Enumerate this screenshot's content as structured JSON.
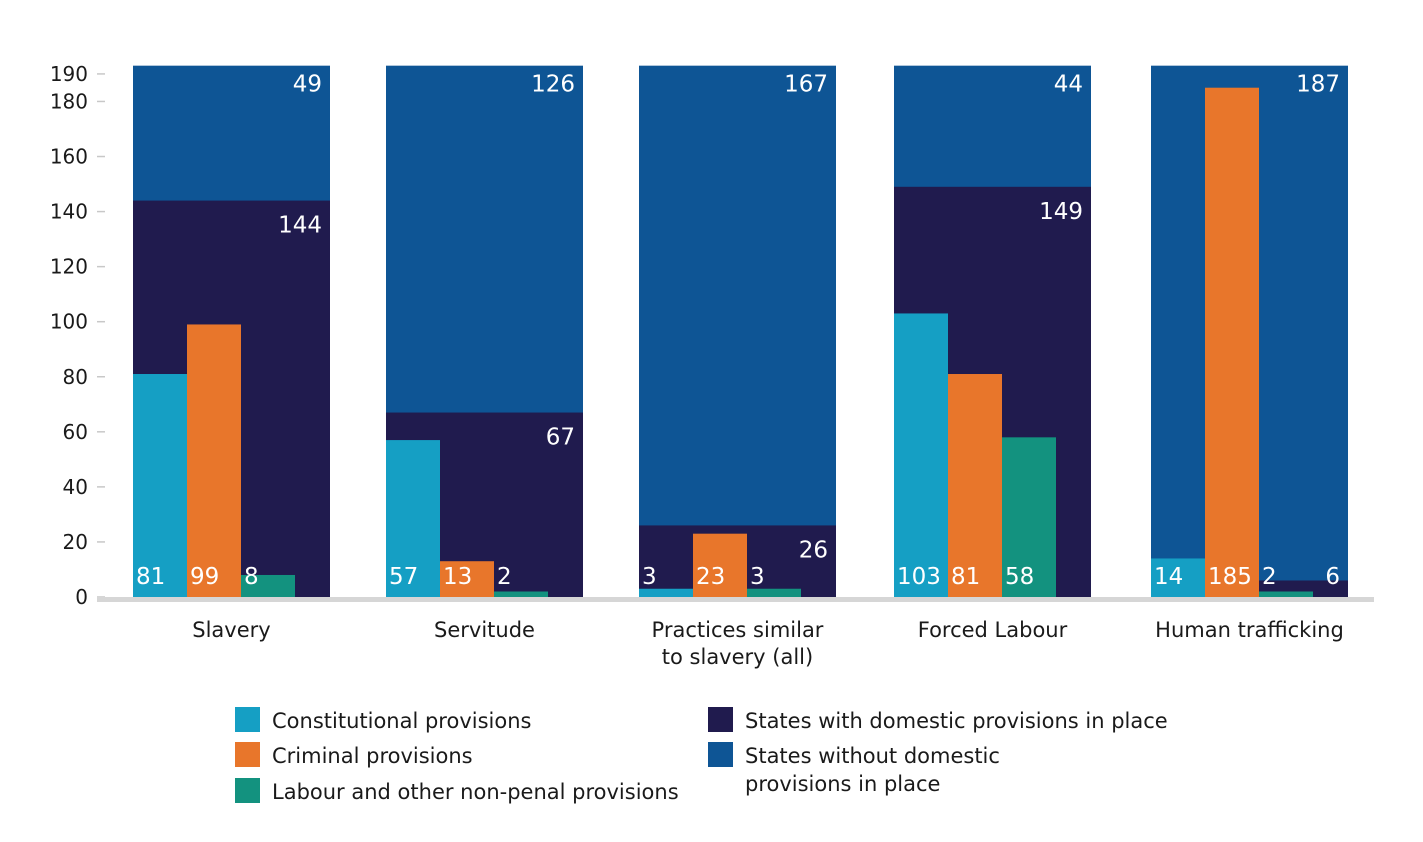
{
  "chart_data": {
    "type": "bar",
    "title": "",
    "xlabel": "",
    "ylabel": "",
    "ylim": [
      0,
      204
    ],
    "yticks": [
      0,
      20,
      40,
      60,
      80,
      100,
      120,
      140,
      160,
      180,
      190
    ],
    "colors": {
      "without": "#0e5595",
      "with": "#201b4e",
      "constitutional": "#159fc4",
      "criminal": "#e8762b",
      "labour": "#13927f",
      "axis": "#d6d6d6"
    },
    "groups": [
      {
        "category": "Slavery",
        "with": 144,
        "without": 49,
        "provisions": [
          81,
          99,
          8
        ],
        "labels": [
          "81",
          "99",
          "8"
        ],
        "with_label": "144",
        "without_label": "49"
      },
      {
        "category": "Servitude",
        "with": 67,
        "without": 126,
        "provisions": [
          57,
          13,
          2
        ],
        "labels": [
          "57",
          "13",
          "2"
        ],
        "with_label": "67",
        "without_label": "126"
      },
      {
        "category": "Practices similar to slavery (all)",
        "with": 26,
        "without": 167,
        "provisions": [
          3,
          23,
          3
        ],
        "labels": [
          "3",
          "23",
          "3"
        ],
        "with_label": "26",
        "without_label": "167"
      },
      {
        "category": "Forced Labour",
        "with": 149,
        "without": 44,
        "provisions": [
          103,
          81,
          58
        ],
        "labels": [
          "103",
          "81",
          "58"
        ],
        "with_label": "149",
        "without_label": "44"
      },
      {
        "category": "Human trafficking",
        "with": 6,
        "without": 187,
        "provisions": [
          14,
          185,
          2
        ],
        "labels": [
          "14",
          "185",
          "2"
        ],
        "with_label": "6",
        "without_label": "187"
      }
    ],
    "category_lines": [
      [
        "Slavery"
      ],
      [
        "Servitude"
      ],
      [
        "Practices similar",
        "to slavery (all)"
      ],
      [
        "Forced Labour"
      ],
      [
        "Human trafficking"
      ]
    ],
    "legend": [
      {
        "key": "constitutional",
        "label": "Constitutional provisions"
      },
      {
        "key": "criminal",
        "label": "Criminal provisions"
      },
      {
        "key": "labour",
        "label": "Labour and other non-penal provisions"
      },
      {
        "key": "with",
        "label": "States with domestic provisions in place"
      },
      {
        "key": "without",
        "label": "States without domestic provisions in place"
      }
    ]
  }
}
